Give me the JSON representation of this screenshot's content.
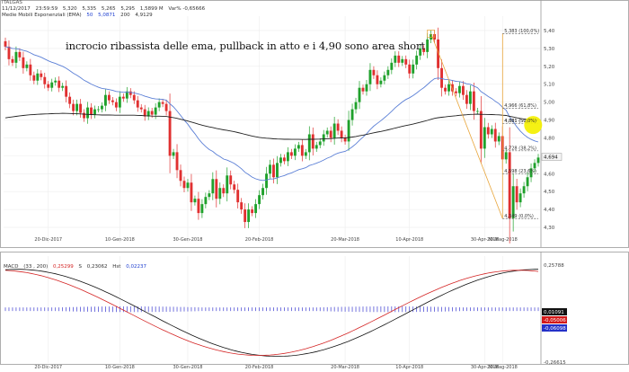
{
  "header": {
    "symbol": "ITALGAS",
    "date": "11/12/2017",
    "time": "23:59:59",
    "open": "5,320",
    "high": "5,335",
    "low": "5,265",
    "close": "5,295",
    "volume": "1,5899 M",
    "change": "Var% -0,65666",
    "indicator_name": "Medie Mobili Esponenziali (EMA)",
    "ema1_period": "50",
    "ema1_value": "5,0871",
    "ema2_period": "200",
    "ema2_value": "4,9129"
  },
  "annotation": "incrocio ribassista delle ema, pullback in atto e i 4,90 sono area short",
  "price_axis": {
    "ticks": [
      "5,40",
      "5,30",
      "5,20",
      "5,10",
      "5,00",
      "4,90",
      "4,80",
      "4,70",
      "4,60",
      "4,50",
      "4,40",
      "4,30"
    ],
    "last_price": "4,694"
  },
  "fibonacci": [
    {
      "label": "5,383 (100,0%)",
      "value": 5.383
    },
    {
      "label": "4,966 (61,8%)",
      "value": 4.966
    },
    {
      "label": "4,881 (50,0%)",
      "value": 4.881
    },
    {
      "label": "4,728 (38,2%)",
      "value": 4.728
    },
    {
      "label": "4,598 (23,6%)",
      "value": 4.598
    },
    {
      "label": "4,349 (0,0%)",
      "value": 4.349
    }
  ],
  "date_axis": [
    "20-Dic-2017",
    "10-Gen-2018",
    "30-Gen-2018",
    "20-Feb-2018",
    "20-Mar-2018",
    "10-Apr-2018",
    "30-Apr-2018",
    "30-Mag-2018"
  ],
  "macd_header": {
    "name": "MACD",
    "params": "(33 , 200)",
    "macd_value": "0,25299",
    "signal_label": "S",
    "signal_value": "0,23062",
    "hist_label": "Hst",
    "hist_value": "0,02237"
  },
  "macd_axis": {
    "top": "0,25788",
    "bottom": "-0,26615",
    "badges": [
      {
        "text": "0,01091",
        "color": "#111111"
      },
      {
        "text": "-0,05006",
        "color": "#d31919"
      },
      {
        "text": "-0,06098",
        "color": "#2431c8"
      }
    ]
  },
  "colors": {
    "up": "#1fa12b",
    "down": "#e03030",
    "ema50": "#5b7fd6",
    "ema200": "#222222",
    "fib": "#e8a53a",
    "highlight": "#f4f000",
    "macd_line": "#d42424",
    "signal_line": "#111111",
    "hist": "#3a3ad0"
  },
  "chart_data": {
    "type": "candlestick",
    "title": "ITALGAS",
    "ylim": [
      4.26,
      5.43
    ],
    "x_labels": [
      "20-Dic-2017",
      "10-Gen-2018",
      "30-Gen-2018",
      "20-Feb-2018",
      "20-Mar-2018",
      "10-Apr-2018",
      "30-Apr-2018",
      "30-Mag-2018"
    ],
    "closes": [
      5.31,
      5.24,
      5.22,
      5.28,
      5.25,
      5.19,
      5.21,
      5.15,
      5.12,
      5.16,
      5.14,
      5.1,
      5.08,
      5.11,
      5.12,
      5.08,
      5.09,
      5.03,
      4.99,
      4.95,
      4.99,
      4.94,
      4.91,
      4.97,
      4.93,
      4.96,
      4.96,
      4.98,
      5.04,
      5.01,
      5.0,
      4.97,
      5.03,
      5.02,
      5.06,
      5.04,
      5.01,
      4.97,
      4.96,
      4.92,
      4.95,
      4.93,
      4.97,
      5.0,
      4.99,
      4.95,
      4.7,
      4.72,
      4.62,
      4.56,
      4.52,
      4.55,
      4.44,
      4.46,
      4.38,
      4.43,
      4.47,
      4.49,
      4.57,
      4.46,
      4.52,
      4.49,
      4.59,
      4.54,
      4.51,
      4.44,
      4.4,
      4.33,
      4.4,
      4.38,
      4.43,
      4.48,
      4.52,
      4.6,
      4.65,
      4.58,
      4.66,
      4.69,
      4.67,
      4.72,
      4.7,
      4.74,
      4.76,
      4.7,
      4.72,
      4.82,
      4.74,
      4.76,
      4.78,
      4.82,
      4.84,
      4.8,
      4.88,
      4.84,
      4.8,
      4.78,
      4.9,
      4.96,
      5.0,
      5.08,
      5.06,
      5.1,
      5.18,
      5.15,
      5.1,
      5.12,
      5.15,
      5.18,
      5.22,
      5.26,
      5.22,
      5.24,
      5.21,
      5.16,
      5.21,
      5.26,
      5.3,
      5.28,
      5.35,
      5.38,
      5.35,
      5.19,
      5.08,
      5.06,
      5.1,
      5.06,
      5.05,
      5.09,
      5.04,
      4.99,
      5.06,
      4.95,
      4.95,
      4.74,
      4.86,
      4.82,
      4.85,
      4.78,
      4.81,
      4.68,
      4.72,
      4.35,
      4.53,
      4.44,
      4.49,
      4.53,
      4.58,
      4.63,
      4.66,
      4.69
    ],
    "ema50_value": 5.0871,
    "ema200_value": 4.9129,
    "last_price": 4.694,
    "fibonacci_levels": [
      5.383,
      4.966,
      4.881,
      4.728,
      4.598,
      4.349
    ],
    "macd": {
      "params": [
        33,
        200
      ],
      "macd": 0.25299,
      "signal": 0.23062,
      "hist": 0.02237,
      "range": [
        -0.26615,
        0.25788
      ]
    }
  }
}
